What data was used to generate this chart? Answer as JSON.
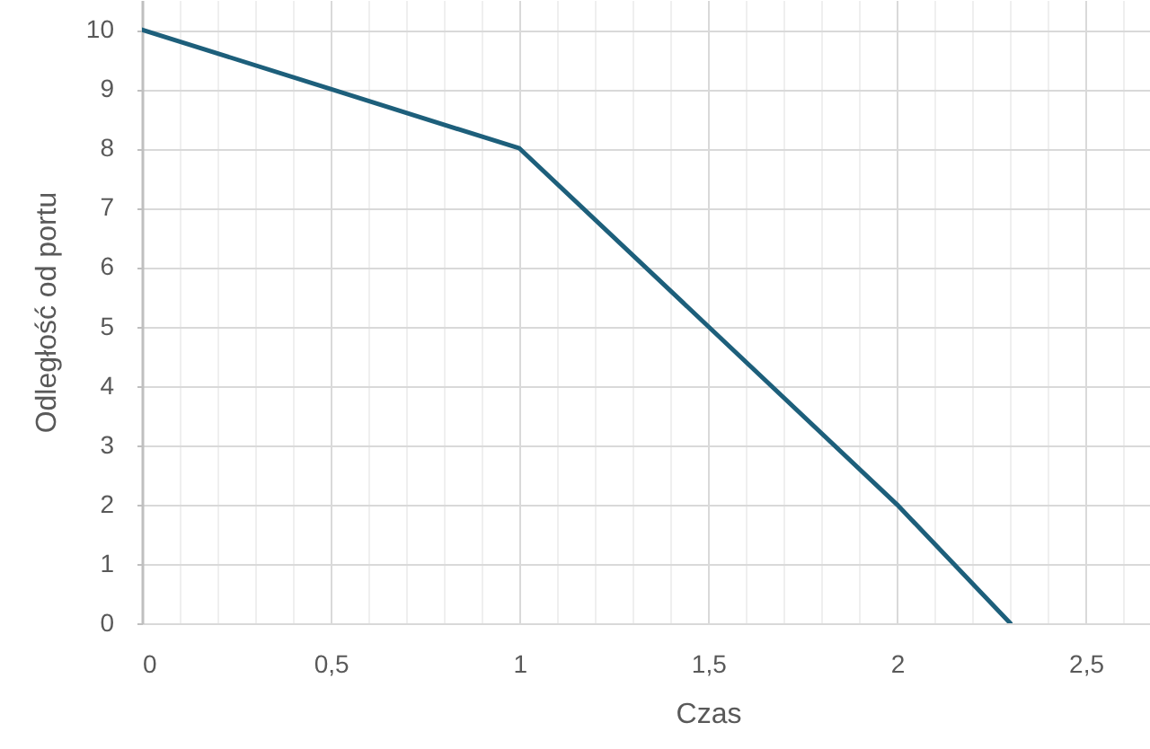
{
  "chart_data": {
    "type": "line",
    "xlabel": "Czas",
    "ylabel": "Odległość od portu",
    "x": [
      0,
      0.5,
      1,
      1.5,
      2,
      2.3
    ],
    "series": [
      {
        "color": "#1d5f7b",
        "values": [
          10,
          9,
          8,
          5,
          2,
          0
        ]
      }
    ],
    "xlim": [
      0,
      2.67
    ],
    "ylim": [
      0,
      10.5
    ],
    "xticks": [
      0,
      {
        "value": 0.1,
        "label": null
      },
      {
        "value": 0.2,
        "label": null
      },
      {
        "value": 0.3,
        "label": null
      },
      {
        "value": 0.4,
        "label": null
      },
      {
        "value": 0.5,
        "label": "0,5"
      },
      {
        "value": 0.6,
        "label": null
      },
      {
        "value": 0.7,
        "label": null
      },
      {
        "value": 0.8,
        "label": null
      },
      {
        "value": 0.9,
        "label": null
      },
      1,
      {
        "value": 1.1,
        "label": null
      },
      {
        "value": 1.2,
        "label": null
      },
      {
        "value": 1.3,
        "label": null
      },
      {
        "value": 1.4,
        "label": null
      },
      {
        "value": 1.5,
        "label": "1,5"
      },
      {
        "value": 1.6,
        "label": null
      },
      {
        "value": 1.7,
        "label": null
      },
      {
        "value": 1.8,
        "label": null
      },
      {
        "value": 1.9,
        "label": null
      },
      2,
      {
        "value": 2.1,
        "label": null
      },
      {
        "value": 2.2,
        "label": null
      },
      {
        "value": 2.3,
        "label": null
      },
      {
        "value": 2.4,
        "label": null
      },
      {
        "value": 2.5,
        "label": "2,5"
      },
      {
        "value": 2.6,
        "label": null
      }
    ],
    "yticks": [
      0,
      1,
      2,
      3,
      4,
      5,
      6,
      7,
      8,
      9,
      10
    ],
    "grid": true
  }
}
